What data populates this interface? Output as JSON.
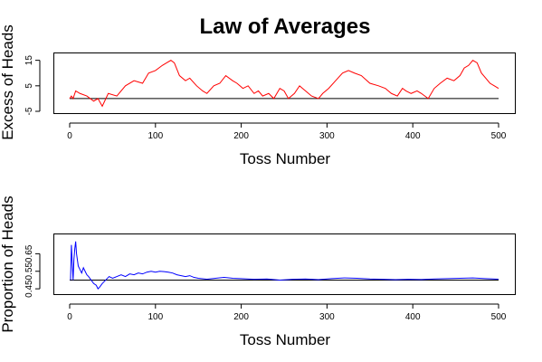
{
  "chart_data": [
    {
      "type": "line",
      "title": "Law of Averages",
      "xlabel": "Toss Number",
      "ylabel": "Excess of Heads",
      "xlim": [
        0,
        500
      ],
      "ylim": [
        -5,
        17
      ],
      "xticks": [
        0,
        100,
        200,
        300,
        400,
        500
      ],
      "yticks": [
        -5,
        5,
        15
      ],
      "reference_line": 0,
      "color": "#ff0000",
      "reference_color": "#000000",
      "series": [
        {
          "x": [
            0,
            2,
            4,
            7,
            12,
            20,
            28,
            33,
            38,
            45,
            55,
            65,
            75,
            85,
            92,
            100,
            108,
            113,
            118,
            122,
            128,
            135,
            140,
            148,
            155,
            160,
            168,
            175,
            182,
            190,
            195,
            202,
            208,
            215,
            220,
            225,
            232,
            238,
            245,
            250,
            255,
            262,
            268,
            275,
            282,
            290,
            295,
            302,
            310,
            318,
            325,
            332,
            340,
            350,
            360,
            368,
            375,
            382,
            388,
            392,
            398,
            405,
            410,
            418,
            425,
            432,
            440,
            448,
            455,
            460,
            465,
            470,
            475,
            480,
            485,
            490,
            495,
            500
          ],
          "y": [
            0,
            1,
            0,
            3,
            2,
            1,
            -1,
            0,
            -3,
            2,
            1,
            5,
            7,
            6,
            10,
            11,
            13,
            14,
            15,
            14,
            9,
            7,
            8,
            5,
            3,
            2,
            5,
            6,
            9,
            7,
            6,
            4,
            5,
            2,
            3,
            1,
            2,
            0,
            4,
            3,
            0,
            2,
            5,
            3,
            1,
            0,
            2,
            4,
            7,
            10,
            11,
            10,
            9,
            6,
            5,
            4,
            2,
            1,
            4,
            3,
            2,
            3,
            2,
            0,
            4,
            6,
            8,
            7,
            9,
            12,
            13,
            15,
            14,
            10,
            8,
            6,
            5,
            4
          ]
        }
      ]
    },
    {
      "type": "line",
      "xlabel": "Toss Number",
      "ylabel": "Proportion of Heads",
      "xlim": [
        0,
        500
      ],
      "ylim": [
        0.43,
        0.75
      ],
      "xticks": [
        0,
        100,
        200,
        300,
        400,
        500
      ],
      "yticks": [
        0.45,
        0.55,
        0.65
      ],
      "reference_line": 0.5,
      "color": "#0000ff",
      "reference_color": "#000000",
      "series": [
        {
          "x": [
            1,
            2,
            3,
            4,
            5,
            6,
            7,
            8,
            10,
            12,
            14,
            16,
            18,
            20,
            22,
            25,
            28,
            31,
            33,
            35,
            38,
            42,
            46,
            50,
            55,
            60,
            65,
            70,
            75,
            80,
            85,
            90,
            95,
            100,
            105,
            110,
            115,
            120,
            125,
            130,
            135,
            140,
            145,
            150,
            160,
            170,
            180,
            190,
            200,
            215,
            230,
            245,
            260,
            275,
            290,
            305,
            320,
            335,
            350,
            365,
            380,
            395,
            410,
            425,
            440,
            455,
            470,
            485,
            500
          ],
          "y": [
            0.5,
            0.7,
            0.6,
            0.5,
            0.62,
            0.68,
            0.72,
            0.65,
            0.58,
            0.56,
            0.54,
            0.57,
            0.55,
            0.53,
            0.52,
            0.5,
            0.48,
            0.47,
            0.45,
            0.46,
            0.48,
            0.5,
            0.52,
            0.51,
            0.52,
            0.53,
            0.52,
            0.535,
            0.53,
            0.54,
            0.535,
            0.545,
            0.55,
            0.545,
            0.55,
            0.548,
            0.545,
            0.54,
            0.53,
            0.525,
            0.52,
            0.525,
            0.515,
            0.51,
            0.505,
            0.51,
            0.515,
            0.51,
            0.508,
            0.504,
            0.506,
            0.5,
            0.504,
            0.506,
            0.502,
            0.508,
            0.512,
            0.51,
            0.506,
            0.504,
            0.502,
            0.504,
            0.503,
            0.506,
            0.508,
            0.51,
            0.512,
            0.508,
            0.505
          ]
        }
      ]
    }
  ]
}
